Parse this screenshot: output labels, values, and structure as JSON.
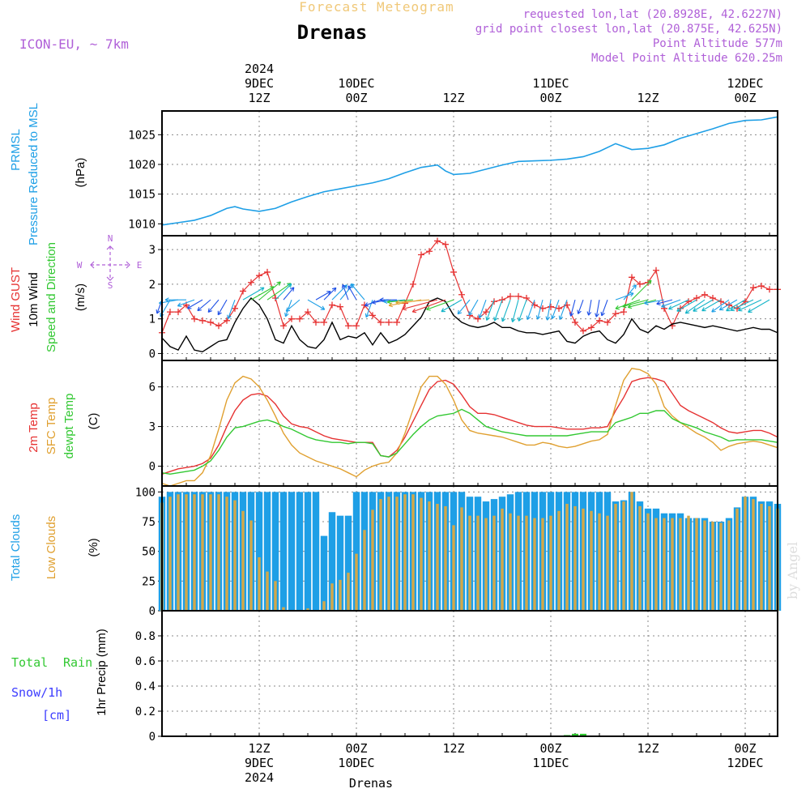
{
  "header": {
    "subtitle": "Forecast Meteogram",
    "title": "Drenas",
    "model": "ICON-EU, ~ 7km",
    "requested": "requested lon,lat (20.8928E, 42.6227N)",
    "gridpoint": "grid point closest lon,lat (20.875E, 42.625N)",
    "point_alt": "Point Altitude 577m",
    "model_alt": "Model Point Altitude 620.25m",
    "credit": "by Angel",
    "bottom_label": "Drenas"
  },
  "colors": {
    "prmsl": "#1e9fe6",
    "gust": "#e63232",
    "wind": "#000000",
    "t2m": "#e63232",
    "sfc": "#e0a030",
    "dewpt": "#32c832",
    "total_clouds": "#1e9fe6",
    "low_clouds": "#d4a848",
    "rain": "#32c832",
    "snow": "#3c3cff",
    "label_purple": "#b060d8",
    "subtitle_gold": "#f0c878"
  },
  "time_axis": {
    "top_labels": [
      {
        "hour": 12,
        "lines": [
          "2024",
          "9DEC",
          "12Z"
        ]
      },
      {
        "hour": 24,
        "lines": [
          "10DEC",
          "00Z"
        ]
      },
      {
        "hour": 36,
        "lines": [
          "12Z"
        ]
      },
      {
        "hour": 48,
        "lines": [
          "11DEC",
          "00Z"
        ]
      },
      {
        "hour": 60,
        "lines": [
          "12Z"
        ]
      },
      {
        "hour": 72,
        "lines": [
          "12DEC",
          "00Z"
        ]
      }
    ],
    "bottom_labels": [
      {
        "hour": 12,
        "lines": [
          "12Z",
          "9DEC",
          "2024"
        ]
      },
      {
        "hour": 24,
        "lines": [
          "00Z",
          "10DEC"
        ]
      },
      {
        "hour": 36,
        "lines": [
          "12Z"
        ]
      },
      {
        "hour": 48,
        "lines": [
          "00Z",
          "11DEC"
        ]
      },
      {
        "hour": 60,
        "lines": [
          "12Z"
        ]
      },
      {
        "hour": 72,
        "lines": [
          "00Z",
          "12DEC"
        ]
      }
    ]
  },
  "chart_data": [
    {
      "type": "line",
      "panel": "pressure",
      "ylabel_lines": [
        "PRMSL",
        "Pressure Reduced to MSL"
      ],
      "unit": "(hPa)",
      "ylim": [
        1008,
        1029
      ],
      "yticks": [
        1010,
        1015,
        1020,
        1025
      ],
      "x_hours": [
        0,
        2,
        4,
        6,
        8,
        9,
        10,
        12,
        14,
        16,
        18,
        20,
        22,
        24,
        26,
        28,
        30,
        32,
        34,
        35,
        36,
        38,
        40,
        42,
        44,
        46,
        48,
        50,
        52,
        54,
        56,
        58,
        60,
        62,
        64,
        66,
        68,
        70,
        72,
        74,
        76
      ],
      "series": [
        {
          "name": "PRMSL",
          "values": [
            1009.8,
            1010.2,
            1010.6,
            1011.4,
            1012.6,
            1012.9,
            1012.5,
            1012.1,
            1012.6,
            1013.7,
            1014.6,
            1015.4,
            1015.9,
            1016.4,
            1016.9,
            1017.6,
            1018.6,
            1019.5,
            1019.9,
            1018.9,
            1018.3,
            1018.5,
            1019.2,
            1019.9,
            1020.5,
            1020.6,
            1020.7,
            1020.9,
            1021.3,
            1022.2,
            1023.5,
            1022.5,
            1022.7,
            1023.3,
            1024.4,
            1025.2,
            1026.0,
            1026.9,
            1027.4,
            1027.5,
            1028.0
          ]
        }
      ]
    },
    {
      "type": "line",
      "panel": "wind",
      "ylabel_lines": [
        "Wind GUST",
        "10m Wind",
        "Speed and Direction"
      ],
      "unit": "(m/s)",
      "compass": [
        "N",
        "S",
        "W",
        "E"
      ],
      "ylim": [
        -0.2,
        3.4
      ],
      "yticks": [
        0,
        1,
        2,
        3
      ],
      "x_hours": [
        0,
        1,
        2,
        3,
        4,
        5,
        6,
        7,
        8,
        9,
        10,
        11,
        12,
        13,
        14,
        15,
        16,
        17,
        18,
        19,
        20,
        21,
        22,
        23,
        24,
        25,
        26,
        27,
        28,
        29,
        30,
        31,
        32,
        33,
        34,
        35,
        36,
        37,
        38,
        39,
        40,
        41,
        42,
        43,
        44,
        45,
        46,
        47,
        48,
        49,
        50,
        51,
        52,
        53,
        54,
        55,
        56,
        57,
        58,
        59,
        60,
        61,
        62,
        63,
        64,
        65,
        66,
        67,
        68,
        69,
        70,
        71,
        72,
        73,
        74,
        75,
        76
      ],
      "series": [
        {
          "name": "Wind GUST",
          "values": [
            0.6,
            1.2,
            1.2,
            1.4,
            1.0,
            0.95,
            0.9,
            0.8,
            0.95,
            1.3,
            1.8,
            2.05,
            2.25,
            2.35,
            1.6,
            0.8,
            1.0,
            1.0,
            1.2,
            0.9,
            0.9,
            1.4,
            1.35,
            0.8,
            0.8,
            1.4,
            1.1,
            0.9,
            0.9,
            0.9,
            1.45,
            2.0,
            2.85,
            2.95,
            3.25,
            3.15,
            2.35,
            1.7,
            1.1,
            1.0,
            1.2,
            1.5,
            1.55,
            1.65,
            1.65,
            1.6,
            1.4,
            1.3,
            1.35,
            1.3,
            1.4,
            0.9,
            0.65,
            0.75,
            0.95,
            0.9,
            1.15,
            1.2,
            2.2,
            2.0,
            2.05,
            2.4,
            1.3,
            0.8,
            1.3,
            1.5,
            1.6,
            1.7,
            1.6,
            1.5,
            1.4,
            1.3,
            1.5,
            1.9,
            1.95,
            1.85,
            1.85
          ]
        },
        {
          "name": "10m Wind",
          "values": [
            0.45,
            0.2,
            0.1,
            0.5,
            0.1,
            0.05,
            0.2,
            0.35,
            0.4,
            0.9,
            1.3,
            1.6,
            1.4,
            1.0,
            0.4,
            0.3,
            0.8,
            0.4,
            0.2,
            0.15,
            0.4,
            0.9,
            0.4,
            0.5,
            0.45,
            0.6,
            0.25,
            0.6,
            0.3,
            0.4,
            0.55,
            0.8,
            1.05,
            1.5,
            1.6,
            1.5,
            1.1,
            0.9,
            0.8,
            0.75,
            0.8,
            0.9,
            0.75,
            0.75,
            0.65,
            0.6,
            0.6,
            0.55,
            0.6,
            0.65,
            0.35,
            0.3,
            0.5,
            0.6,
            0.65,
            0.4,
            0.3,
            0.55,
            1.0,
            0.7,
            0.6,
            0.8,
            0.7,
            0.85,
            0.9,
            0.85,
            0.8,
            0.75,
            0.8,
            0.75,
            0.7,
            0.65,
            0.7,
            0.75,
            0.7,
            0.7,
            0.6
          ]
        }
      ],
      "wind_direction_arrows": true
    },
    {
      "type": "line",
      "panel": "temperature",
      "ylabel_lines": [
        "2m Temp",
        "SFC Temp",
        "dewpt Temp"
      ],
      "unit": "(C)",
      "ylim": [
        -1.5,
        8
      ],
      "yticks": [
        0,
        3,
        6
      ],
      "x_hours": [
        0,
        1,
        2,
        3,
        4,
        5,
        6,
        7,
        8,
        9,
        10,
        11,
        12,
        13,
        14,
        15,
        16,
        17,
        18,
        19,
        20,
        21,
        22,
        23,
        24,
        25,
        26,
        27,
        28,
        29,
        30,
        31,
        32,
        33,
        34,
        35,
        36,
        37,
        38,
        39,
        40,
        41,
        42,
        43,
        44,
        45,
        46,
        47,
        48,
        49,
        50,
        51,
        52,
        53,
        54,
        55,
        56,
        57,
        58,
        59,
        60,
        61,
        62,
        63,
        64,
        65,
        66,
        67,
        68,
        69,
        70,
        71,
        72,
        73,
        74,
        75,
        76
      ],
      "series": [
        {
          "name": "2m Temp",
          "values": [
            -0.6,
            -0.4,
            -0.2,
            -0.1,
            0.0,
            0.2,
            0.6,
            1.6,
            3.0,
            4.2,
            5.0,
            5.4,
            5.5,
            5.3,
            4.7,
            3.8,
            3.2,
            3.0,
            2.9,
            2.6,
            2.3,
            2.1,
            2.0,
            1.9,
            1.8,
            1.8,
            1.8,
            0.8,
            0.7,
            1.2,
            2.2,
            3.4,
            4.6,
            5.8,
            6.4,
            6.5,
            6.2,
            5.4,
            4.5,
            4.0,
            4.0,
            3.9,
            3.7,
            3.5,
            3.3,
            3.1,
            3.0,
            3.0,
            3.0,
            2.9,
            2.8,
            2.8,
            2.8,
            2.9,
            2.9,
            3.0,
            4.2,
            5.2,
            6.4,
            6.6,
            6.7,
            6.6,
            6.4,
            5.5,
            4.6,
            4.2,
            3.9,
            3.6,
            3.3,
            2.9,
            2.6,
            2.5,
            2.6,
            2.7,
            2.7,
            2.5,
            2.2
          ]
        },
        {
          "name": "SFC Temp",
          "values": [
            -1.3,
            -1.5,
            -1.3,
            -1.1,
            -1.1,
            -0.5,
            0.8,
            2.8,
            5.0,
            6.3,
            6.8,
            6.6,
            6.0,
            5.0,
            3.8,
            2.5,
            1.6,
            1.0,
            0.7,
            0.4,
            0.2,
            0.0,
            -0.2,
            -0.5,
            -0.8,
            -0.3,
            0.0,
            0.2,
            0.3,
            1.0,
            2.5,
            4.3,
            6.0,
            6.8,
            6.8,
            6.2,
            5.0,
            3.5,
            2.7,
            2.5,
            2.4,
            2.3,
            2.2,
            2.0,
            1.8,
            1.6,
            1.6,
            1.8,
            1.7,
            1.5,
            1.4,
            1.5,
            1.7,
            1.9,
            2.0,
            2.4,
            4.6,
            6.5,
            7.4,
            7.3,
            7.0,
            6.2,
            4.5,
            3.8,
            3.3,
            2.9,
            2.5,
            2.2,
            1.8,
            1.2,
            1.5,
            1.7,
            1.8,
            1.9,
            1.8,
            1.6,
            1.4
          ]
        },
        {
          "name": "dewpt Temp",
          "values": [
            -0.5,
            -0.6,
            -0.5,
            -0.4,
            -0.3,
            0.0,
            0.4,
            1.2,
            2.2,
            2.9,
            3.0,
            3.2,
            3.4,
            3.5,
            3.3,
            3.0,
            2.8,
            2.5,
            2.2,
            2.0,
            1.9,
            1.8,
            1.8,
            1.7,
            1.8,
            1.8,
            1.7,
            0.8,
            0.7,
            1.0,
            1.7,
            2.4,
            3.0,
            3.5,
            3.8,
            3.9,
            4.0,
            4.3,
            4.0,
            3.5,
            3.0,
            2.8,
            2.6,
            2.5,
            2.4,
            2.3,
            2.3,
            2.3,
            2.3,
            2.3,
            2.3,
            2.4,
            2.5,
            2.6,
            2.6,
            2.6,
            3.3,
            3.5,
            3.7,
            4.0,
            4.0,
            4.2,
            4.2,
            3.6,
            3.3,
            3.1,
            2.9,
            2.6,
            2.4,
            2.2,
            1.9,
            2.0,
            2.0,
            2.0,
            2.0,
            1.9,
            1.8
          ]
        }
      ]
    },
    {
      "type": "bar",
      "panel": "clouds",
      "ylabel_lines": [
        "Total Clouds",
        "Low Clouds"
      ],
      "unit": "(%)",
      "ylim": [
        0,
        105
      ],
      "yticks": [
        0,
        25,
        50,
        75,
        100
      ],
      "x_hours": [
        0,
        1,
        2,
        3,
        4,
        5,
        6,
        7,
        8,
        9,
        10,
        11,
        12,
        13,
        14,
        15,
        16,
        17,
        18,
        19,
        20,
        21,
        22,
        23,
        24,
        25,
        26,
        27,
        28,
        29,
        30,
        31,
        32,
        33,
        34,
        35,
        36,
        37,
        38,
        39,
        40,
        41,
        42,
        43,
        44,
        45,
        46,
        47,
        48,
        49,
        50,
        51,
        52,
        53,
        54,
        55,
        56,
        57,
        58,
        59,
        60,
        61,
        62,
        63,
        64,
        65,
        66,
        67,
        68,
        69,
        70,
        71,
        72,
        73,
        74,
        75,
        76
      ],
      "series": [
        {
          "name": "Total Clouds",
          "values": [
            96,
            100,
            100,
            100,
            100,
            100,
            100,
            100,
            100,
            100,
            100,
            100,
            100,
            100,
            100,
            100,
            100,
            100,
            100,
            100,
            63,
            83,
            80,
            80,
            100,
            100,
            100,
            100,
            100,
            100,
            100,
            100,
            100,
            100,
            100,
            100,
            100,
            100,
            96,
            96,
            92,
            94,
            96,
            98,
            100,
            100,
            100,
            100,
            100,
            100,
            100,
            100,
            100,
            100,
            100,
            100,
            92,
            93,
            100,
            92,
            86,
            86,
            82,
            82,
            82,
            78,
            78,
            78,
            75,
            75,
            78,
            87,
            96,
            96,
            92,
            92,
            90
          ]
        },
        {
          "name": "Low Clouds",
          "values": [
            91,
            96,
            98,
            98,
            98,
            98,
            98,
            98,
            96,
            93,
            84,
            76,
            45,
            33,
            25,
            3,
            0,
            0,
            2,
            0,
            8,
            23,
            26,
            32,
            48,
            68,
            85,
            94,
            96,
            96,
            98,
            98,
            95,
            92,
            90,
            88,
            72,
            87,
            80,
            80,
            78,
            80,
            86,
            82,
            80,
            80,
            78,
            78,
            80,
            84,
            90,
            88,
            86,
            84,
            82,
            80,
            90,
            92,
            100,
            88,
            82,
            78,
            78,
            78,
            78,
            80,
            78,
            76,
            75,
            74,
            76,
            86,
            96,
            94,
            90,
            88,
            86
          ]
        }
      ]
    },
    {
      "type": "bar",
      "panel": "precip",
      "ylabel_lines": [
        "1hr Precip (mm)"
      ],
      "legend_total": "Total",
      "legend_rain": "Rain",
      "legend_snow": "Snow/1h",
      "legend_snow_unit": "[cm]",
      "ylim": [
        0,
        1.0
      ],
      "yticks": [
        0,
        0.2,
        0.4,
        0.6,
        0.8
      ],
      "x_hours": [
        50,
        51,
        52
      ],
      "series": [
        {
          "name": "Rain",
          "values": [
            0.01,
            0.02,
            0.02
          ]
        }
      ]
    }
  ]
}
